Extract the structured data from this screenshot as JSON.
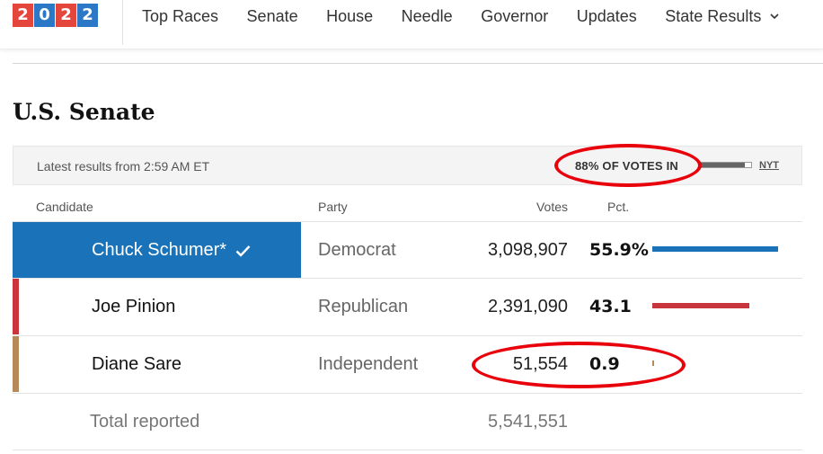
{
  "logo": {
    "digits": [
      "2",
      "0",
      "2",
      "2"
    ],
    "colors": [
      "#e4463c",
      "#2a78c6",
      "#e4463c",
      "#2a78c6"
    ]
  },
  "nav": {
    "items": [
      "Top Races",
      "Senate",
      "House",
      "Needle",
      "Governor",
      "Updates"
    ],
    "dropdown_label": "State Results"
  },
  "page": {
    "title": "U.S. Senate"
  },
  "status": {
    "latest": "Latest results from 2:59 AM ET",
    "votes_in": "88% OF VOTES IN",
    "votes_in_fraction": 0.88,
    "source": "NYT"
  },
  "columns": {
    "candidate": "Candidate",
    "party": "Party",
    "votes": "Votes",
    "pct": "Pct."
  },
  "rows": [
    {
      "name": "Chuck Schumer*",
      "party": "Democrat",
      "votes": "3,098,907",
      "pct": "55.9%",
      "share": 55.9,
      "color": "#1a73b8",
      "winner": true
    },
    {
      "name": "Joe Pinion",
      "party": "Republican",
      "votes": "2,391,090",
      "pct": "43.1",
      "share": 43.1,
      "color": "#c9353d",
      "winner": false
    },
    {
      "name": "Diane Sare",
      "party": "Independent",
      "votes": "51,554",
      "pct": "0.9",
      "share": 0.9,
      "color": "#b58a5b",
      "winner": false
    }
  ],
  "total": {
    "label": "Total reported",
    "votes": "5,541,551"
  },
  "annotation_color": "#e8000b"
}
